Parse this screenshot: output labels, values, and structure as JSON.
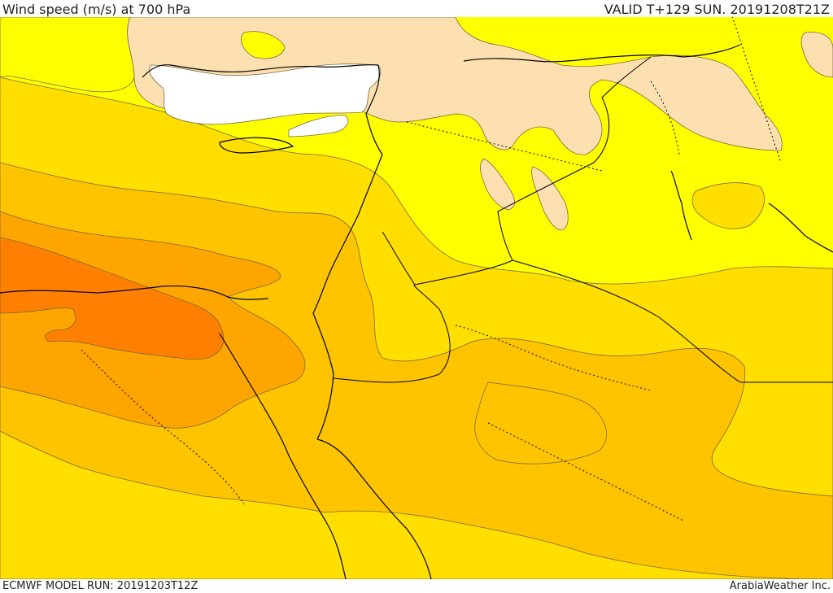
{
  "header": {
    "title": "Wind speed (m/s) at 700 hPa",
    "valid": "VALID T+129 SUN. 20191208T21Z"
  },
  "footer": {
    "model_run": "ECMWF MODEL RUN: 20191203T12Z",
    "provider": "ArabiaWeather Inc."
  },
  "map": {
    "region": "eastern-mediterranean-middle-east",
    "colors": {
      "calm_white": "#ffffff",
      "light_peach": "#fde0b0",
      "yellow": "#ffff00",
      "gold": "#ffde00",
      "amber": "#ffc400",
      "orange": "#ffa500",
      "dark_orange": "#ff8000",
      "contour": "#7a6a40",
      "coast": "#000000"
    }
  }
}
